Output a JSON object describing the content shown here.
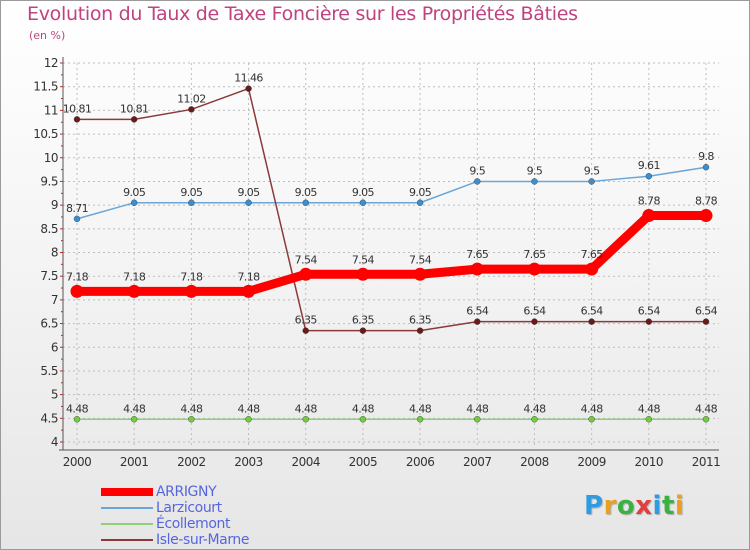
{
  "title": "Evolution du Taux de Taxe Foncière sur les Propriétés Bâties",
  "subtitle": "(en %)",
  "logo": {
    "text": "Proxiti",
    "letter_colors": [
      "#2f9be0",
      "#e8a020",
      "#3cb044",
      "#e04040",
      "#2f9be0",
      "#3cb044",
      "#e8a020"
    ]
  },
  "chart_data": {
    "type": "line",
    "title": "Evolution du Taux de Taxe Foncière sur les Propriétés Bâties",
    "ylabel": "(en %)",
    "xlabel": "",
    "ylim": [
      4,
      12
    ],
    "ytick_step": 0.5,
    "yticks": [
      "4",
      "4.5",
      "5",
      "5.5",
      "6",
      "6.5",
      "7",
      "7.5",
      "8",
      "8.5",
      "9",
      "9.5",
      "10",
      "10.5",
      "11",
      "11.5",
      "12"
    ],
    "categories": [
      "2000",
      "2001",
      "2002",
      "2003",
      "2004",
      "2005",
      "2006",
      "2007",
      "2008",
      "2009",
      "2010",
      "2011"
    ],
    "grid": true,
    "legend_position": "bottom-left",
    "series": [
      {
        "name": "ARRIGNY",
        "color": "#ff0000",
        "emphasis": true,
        "values": [
          7.18,
          7.18,
          7.18,
          7.18,
          7.54,
          7.54,
          7.54,
          7.65,
          7.65,
          7.65,
          8.78,
          8.78
        ],
        "labels": [
          "7.18",
          "7.18",
          "7.18",
          "7.18",
          "7.54",
          "7.54",
          "7.54",
          "7.65",
          "7.65",
          "7.65",
          "8.78",
          "8.78"
        ]
      },
      {
        "name": "Larzicourt",
        "color": "#6aa6d8",
        "marker_color": "#3b8fd0",
        "values": [
          8.71,
          9.05,
          9.05,
          9.05,
          9.05,
          9.05,
          9.05,
          9.5,
          9.5,
          9.5,
          9.61,
          9.8
        ],
        "labels": [
          "8.71",
          "9.05",
          "9.05",
          "9.05",
          "9.05",
          "9.05",
          "9.05",
          "9.5",
          "9.5",
          "9.5",
          "9.61",
          "9.8"
        ]
      },
      {
        "name": "Écollemont",
        "color": "#8ed07a",
        "marker_color": "#6fcf3a",
        "values": [
          4.48,
          4.48,
          4.48,
          4.48,
          4.48,
          4.48,
          4.48,
          4.48,
          4.48,
          4.48,
          4.48,
          4.48
        ],
        "labels": [
          "4.48",
          "4.48",
          "4.48",
          "4.48",
          "4.48",
          "4.48",
          "4.48",
          "4.48",
          "4.48",
          "4.48",
          "4.48",
          "4.48"
        ]
      },
      {
        "name": "Isle-sur-Marne",
        "color": "#8a3a3a",
        "marker_color": "#6b1a1a",
        "values": [
          10.81,
          10.81,
          11.02,
          11.46,
          6.35,
          6.35,
          6.35,
          6.54,
          6.54,
          6.54,
          6.54,
          6.54
        ],
        "labels": [
          "10.81",
          "10.81",
          "11.02",
          "11.46",
          "6.35",
          "6.35",
          "6.35",
          "6.54",
          "6.54",
          "6.54",
          "6.54",
          "6.54"
        ]
      }
    ]
  }
}
